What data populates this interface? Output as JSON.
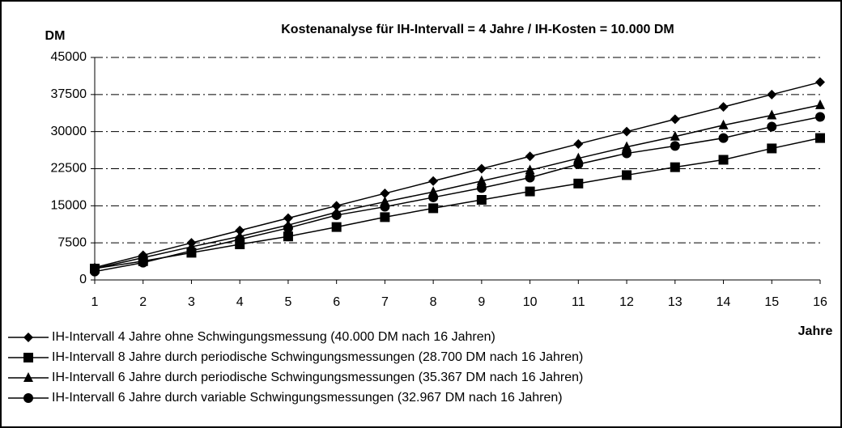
{
  "chart_data": {
    "type": "line",
    "title": "Kostenanalyse für IH-Intervall = 4 Jahre / IH-Kosten = 10.000 DM",
    "y_label": "DM",
    "x_label": "Jahre",
    "x": [
      1,
      2,
      3,
      4,
      5,
      6,
      7,
      8,
      9,
      10,
      11,
      12,
      13,
      14,
      15,
      16
    ],
    "xlim": [
      1,
      16
    ],
    "xticks": [
      1,
      2,
      3,
      4,
      5,
      6,
      7,
      8,
      9,
      10,
      11,
      12,
      13,
      14,
      15,
      16
    ],
    "ylim": [
      0,
      45000
    ],
    "yticks": [
      0,
      7500,
      15000,
      22500,
      30000,
      37500,
      45000
    ],
    "grid": true,
    "series": [
      {
        "name": "IH-Intervall 4 Jahre ohne Schwingungsmessung (40.000 DM nach 16 Jahren)",
        "color": "#000000",
        "marker": "diamond",
        "values": [
          2500,
          5000,
          7500,
          10000,
          12500,
          15000,
          17500,
          20000,
          22500,
          25000,
          27500,
          30000,
          32500,
          35000,
          37500,
          40000
        ]
      },
      {
        "name": "IH-Intervall 8 Jahre durch periodische Schwingungsmessungen (28.700 DM nach 16 Jahren)",
        "color": "#000000",
        "marker": "square",
        "values": [
          2300,
          3800,
          5500,
          7200,
          8800,
          10700,
          12700,
          14500,
          16200,
          17900,
          19500,
          21200,
          22800,
          24300,
          26600,
          28700
        ]
      },
      {
        "name": "IH-Intervall 6 Jahre durch periodische Schwingungsmessungen (35.367 DM nach 16 Jahren)",
        "color": "#000000",
        "marker": "triangle",
        "values": [
          2300,
          4500,
          6700,
          8800,
          11100,
          13700,
          15800,
          17800,
          20000,
          22200,
          24600,
          26900,
          29000,
          31300,
          33300,
          35367
        ]
      },
      {
        "name": "IH-Intervall 6 Jahre durch variable Schwingungsmessungen (32.967 DM nach 16 Jahren)",
        "color": "#000000",
        "marker": "circle",
        "values": [
          1700,
          3500,
          5900,
          8200,
          10500,
          13100,
          14800,
          16700,
          18600,
          20700,
          23400,
          25600,
          27100,
          28700,
          31000,
          32967
        ]
      }
    ]
  }
}
